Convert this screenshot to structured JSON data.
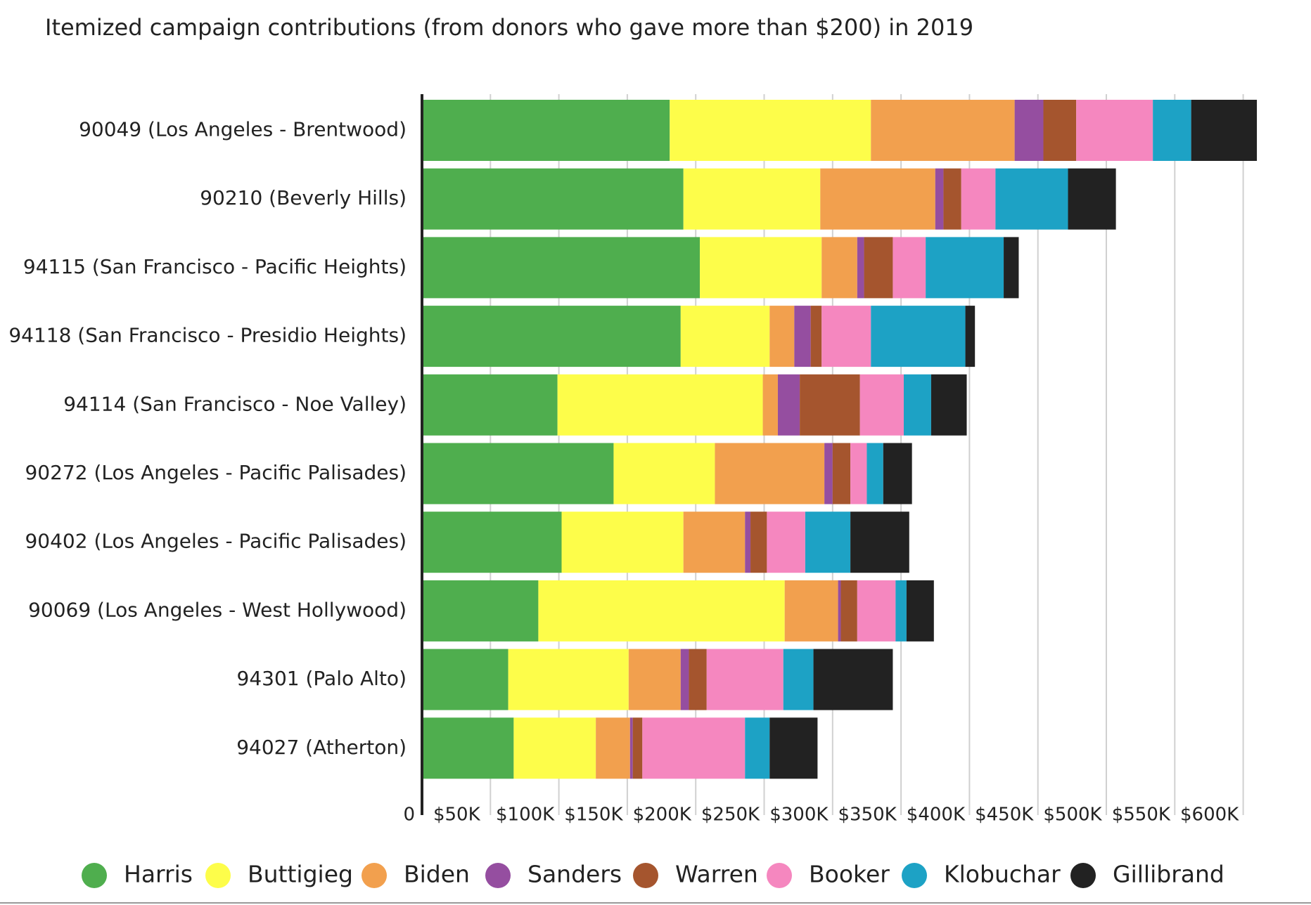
{
  "chart_data": {
    "type": "bar",
    "orientation": "horizontal",
    "stacked": true,
    "title": "Itemized campaign contributions (from donors who gave more than $200) in 2019",
    "xlabel": "",
    "ylabel": "",
    "xlim": [
      0,
      625000
    ],
    "x_ticks": [
      0,
      50000,
      100000,
      150000,
      200000,
      250000,
      300000,
      350000,
      400000,
      450000,
      500000,
      550000,
      600000
    ],
    "x_tick_labels": [
      "0",
      "$50K",
      "$100K",
      "$150K",
      "$200K",
      "$250K",
      "$300K",
      "$350K",
      "$400K",
      "$450K",
      "$500K",
      "$550K",
      "$600K"
    ],
    "grid": true,
    "legend_position": "bottom",
    "categories": [
      "90049 (Los Angeles - Brentwood)",
      "90210 (Beverly Hills)",
      "94115 (San Francisco - Pacific Heights)",
      "94118 (San Francisco - Presidio Heights)",
      "94114 (San Francisco - Noe Valley)",
      "90272 (Los Angeles - Pacific Palisades)",
      "90402 (Los Angeles - Pacific Palisades)",
      "90069 (Los Angeles - West Hollywood)",
      "94301 (Palo Alto)",
      "94027 (Atherton)"
    ],
    "series": [
      {
        "name": "Harris",
        "color": "#4fae4e",
        "values": [
          181000,
          191000,
          203000,
          189000,
          99000,
          140000,
          102000,
          85000,
          63000,
          67000
        ]
      },
      {
        "name": "Buttigieg",
        "color": "#fdfd4a",
        "values": [
          147000,
          100000,
          89000,
          65000,
          150000,
          74000,
          89000,
          180000,
          88000,
          60000
        ]
      },
      {
        "name": "Biden",
        "color": "#f2a04e",
        "values": [
          105000,
          84000,
          26000,
          18000,
          11000,
          80000,
          45000,
          39000,
          38000,
          25000
        ]
      },
      {
        "name": "Sanders",
        "color": "#954ea0",
        "values": [
          21000,
          6000,
          5000,
          12000,
          16000,
          6000,
          4000,
          2000,
          6000,
          2000
        ]
      },
      {
        "name": "Warren",
        "color": "#a5552e",
        "values": [
          24000,
          13000,
          21000,
          8000,
          44000,
          13000,
          12000,
          12000,
          13000,
          7000
        ]
      },
      {
        "name": "Booker",
        "color": "#f587bf",
        "values": [
          56000,
          25000,
          24000,
          36000,
          32000,
          12000,
          28000,
          28000,
          56000,
          75000
        ]
      },
      {
        "name": "Klobuchar",
        "color": "#1da2c5",
        "values": [
          28000,
          53000,
          57000,
          69000,
          20000,
          12000,
          33000,
          8000,
          22000,
          18000
        ]
      },
      {
        "name": "Gillibrand",
        "color": "#222222",
        "values": [
          48000,
          35000,
          11000,
          7000,
          26000,
          21000,
          43000,
          20000,
          58000,
          35000
        ]
      }
    ]
  }
}
